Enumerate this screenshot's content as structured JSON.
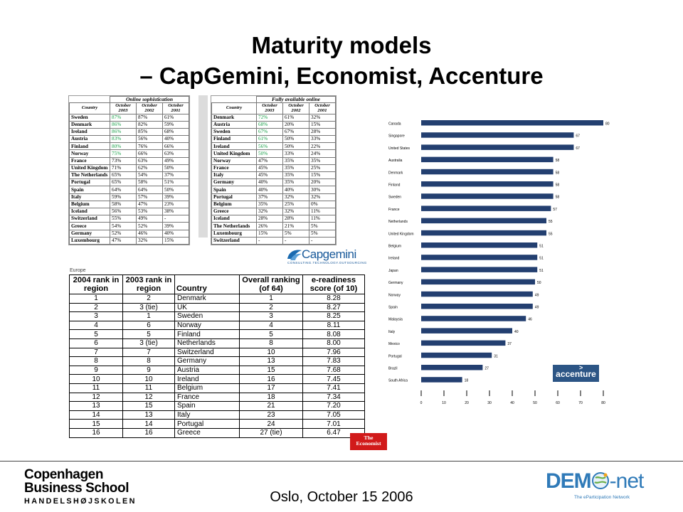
{
  "title": {
    "line1": "Maturity models",
    "line2": "– CapGemini, Economist, Accenture"
  },
  "capgemini": {
    "left": {
      "heading": "Online sophistication",
      "cols": [
        "Country",
        "October 2003",
        "October 2002",
        "October 2001"
      ],
      "rows": [
        [
          "Sweden",
          "87%",
          "87%",
          "61%"
        ],
        [
          "Denmark",
          "86%",
          "82%",
          "59%"
        ],
        [
          "Ireland",
          "86%",
          "85%",
          "68%"
        ],
        [
          "Austria",
          "83%",
          "56%",
          "40%"
        ],
        [
          "Finland",
          "80%",
          "76%",
          "66%"
        ],
        [
          "Norway",
          "75%",
          "66%",
          "63%"
        ],
        [
          "France",
          "73%",
          "63%",
          "49%"
        ],
        [
          "United Kingdom",
          "71%",
          "62%",
          "50%"
        ],
        [
          "The Netherlands",
          "65%",
          "54%",
          "37%"
        ],
        [
          "Portugal",
          "65%",
          "58%",
          "51%"
        ],
        [
          "Spain",
          "64%",
          "64%",
          "50%"
        ],
        [
          "Italy",
          "59%",
          "57%",
          "39%"
        ],
        [
          "Belgium",
          "58%",
          "47%",
          "23%"
        ],
        [
          "Iceland",
          "56%",
          "53%",
          "38%"
        ],
        [
          "Switzerland",
          "55%",
          "49%",
          "-"
        ],
        [
          "Greece",
          "54%",
          "52%",
          "39%"
        ],
        [
          "Germany",
          "52%",
          "46%",
          "40%"
        ],
        [
          "Luxembourg",
          "47%",
          "32%",
          "15%"
        ]
      ]
    },
    "right": {
      "heading": "Fully available online",
      "cols": [
        "Country",
        "October 2003",
        "October 2002",
        "October 2001"
      ],
      "rows": [
        [
          "Denmark",
          "72%",
          "61%",
          "32%"
        ],
        [
          "Austria",
          "68%",
          "20%",
          "15%"
        ],
        [
          "Sweden",
          "67%",
          "67%",
          "28%"
        ],
        [
          "Finland",
          "61%",
          "50%",
          "33%"
        ],
        [
          "Ireland",
          "56%",
          "50%",
          "22%"
        ],
        [
          "United Kingdom",
          "50%",
          "33%",
          "24%"
        ],
        [
          "Norway",
          "47%",
          "35%",
          "35%"
        ],
        [
          "France",
          "45%",
          "35%",
          "25%"
        ],
        [
          "Italy",
          "45%",
          "35%",
          "15%"
        ],
        [
          "Germany",
          "40%",
          "35%",
          "20%"
        ],
        [
          "Spain",
          "40%",
          "40%",
          "30%"
        ],
        [
          "Portugal",
          "37%",
          "32%",
          "32%"
        ],
        [
          "Belgium",
          "35%",
          "25%",
          "0%"
        ],
        [
          "Greece",
          "32%",
          "32%",
          "11%"
        ],
        [
          "Iceland",
          "28%",
          "28%",
          "11%"
        ],
        [
          "The Netherlands",
          "26%",
          "21%",
          "5%"
        ],
        [
          "Luxembourg",
          "15%",
          "5%",
          "5%"
        ],
        [
          "Switzerland",
          "-",
          "-",
          "-"
        ]
      ]
    },
    "green_left": 6,
    "green_right": 6,
    "logo": {
      "name": "Capgemini",
      "tagline": "CONSULTING.TECHNOLOGY.OUTSOURCING"
    }
  },
  "economist": {
    "caption": "Europe",
    "cols": [
      "2004 rank in region",
      "2003 rank in region",
      "Country",
      "Overall ranking (of 64)",
      "e-readiness score (of 10)"
    ],
    "rows": [
      [
        "1",
        "2",
        "Denmark",
        "1",
        "8.28"
      ],
      [
        "2",
        "3 (tie)",
        "UK",
        "2",
        "8.27"
      ],
      [
        "3",
        "1",
        "Sweden",
        "3",
        "8.25"
      ],
      [
        "4",
        "6",
        "Norway",
        "4",
        "8.11"
      ],
      [
        "5",
        "5",
        "Finland",
        "5",
        "8.08"
      ],
      [
        "6",
        "3 (tie)",
        "Netherlands",
        "8",
        "8.00"
      ],
      [
        "7",
        "7",
        "Switzerland",
        "10",
        "7.96"
      ],
      [
        "8",
        "8",
        "Germany",
        "13",
        "7.83"
      ],
      [
        "9",
        "9",
        "Austria",
        "15",
        "7.68"
      ],
      [
        "10",
        "10",
        "Ireland",
        "16",
        "7.45"
      ],
      [
        "11",
        "11",
        "Belgium",
        "17",
        "7.41"
      ],
      [
        "12",
        "12",
        "France",
        "18",
        "7.34"
      ],
      [
        "13",
        "15",
        "Spain",
        "21",
        "7.20"
      ],
      [
        "14",
        "13",
        "Italy",
        "23",
        "7.05"
      ],
      [
        "15",
        "14",
        "Portugal",
        "24",
        "7.01"
      ],
      [
        "16",
        "16",
        "Greece",
        "27 (tie)",
        "6.47"
      ]
    ],
    "logo": {
      "line1": "The",
      "line2": "Economist"
    }
  },
  "chart_data": {
    "type": "bar",
    "orientation": "horizontal",
    "categories": [
      "Canada",
      "Singapore",
      "United States",
      "Australia",
      "Denmark",
      "Finland",
      "Sweden",
      "France",
      "Netherlands",
      "United Kingdom",
      "Belgium",
      "Ireland",
      "Japan",
      "Germany",
      "Norway",
      "Spain",
      "Malaysia",
      "Italy",
      "Mexico",
      "Portugal",
      "Brazil",
      "South Africa"
    ],
    "values": [
      80,
      67,
      67,
      58,
      58,
      58,
      58,
      57,
      55,
      55,
      51,
      51,
      51,
      50,
      49,
      49,
      46,
      40,
      37,
      31,
      27,
      18
    ],
    "xlim": [
      0,
      80
    ],
    "xticks": [
      0,
      10,
      20,
      30,
      40,
      50,
      60,
      70,
      80
    ],
    "bar_color": "#233f70"
  },
  "accenture_logo": "accenture",
  "footer": {
    "location_date": "Oslo, October 15 2006",
    "cbs": {
      "line1": "Copenhagen",
      "line2": "Business School",
      "line3": "HANDELSHØJSKOLEN"
    },
    "demo": {
      "main": "DEM",
      "net": "-net",
      "sub": "The eParticipation Network"
    }
  }
}
